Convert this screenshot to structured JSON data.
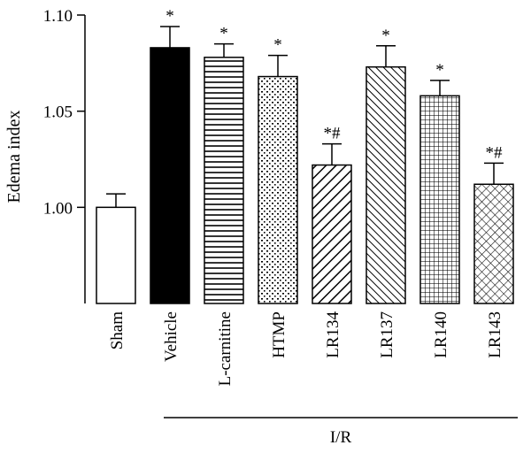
{
  "chart_data": {
    "type": "bar",
    "ylabel": "Edema index",
    "ylim": [
      0.95,
      1.1
    ],
    "yticks": [
      "1.00",
      "1.05",
      "1.10"
    ],
    "grid": false,
    "group_label": "I/R",
    "categories": [
      "Sham",
      "Vehicle",
      "L-carnitine",
      "HTMP",
      "LR134",
      "LR137",
      "LR140",
      "LR143"
    ],
    "values": [
      1.0,
      1.083,
      1.078,
      1.068,
      1.022,
      1.073,
      1.058,
      1.012
    ],
    "errors": [
      0.007,
      0.011,
      0.007,
      0.011,
      0.011,
      0.011,
      0.008,
      0.011
    ],
    "significance": [
      "",
      "*",
      "*",
      "*",
      "*#",
      "*",
      "*",
      "*#"
    ],
    "fills": [
      "white",
      "solid-black",
      "horizontal-lines",
      "dots",
      "diagonal-lines",
      "dense-diagonal-lines",
      "grid",
      "crosshatch"
    ]
  }
}
